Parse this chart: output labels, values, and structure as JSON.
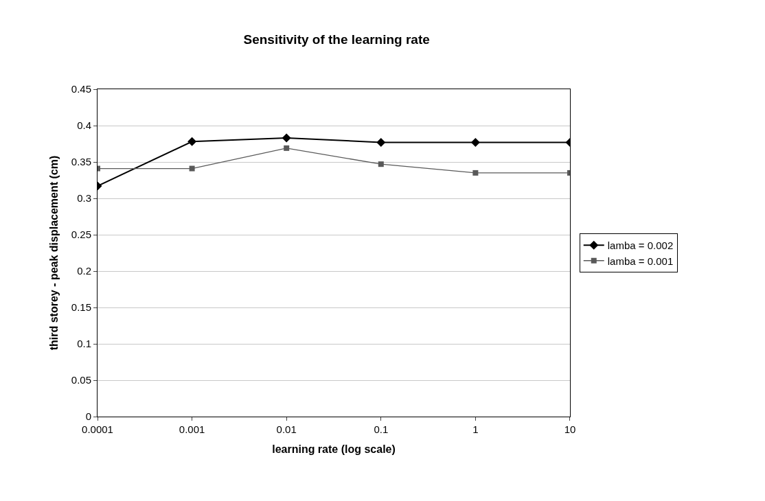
{
  "chart_data": {
    "type": "line",
    "title": "Sensitivity of the learning rate",
    "xlabel": "learning rate (log scale)",
    "ylabel": "third storey - peak displacement (cm)",
    "categories": [
      "0.0001",
      "0.001",
      "0.01",
      "0.1",
      "1",
      "10"
    ],
    "series": [
      {
        "name": "lamba = 0.002",
        "color": "#000000",
        "marker": "diamond",
        "values": [
          0.317,
          0.378,
          0.383,
          0.377,
          0.377,
          0.377
        ]
      },
      {
        "name": "lamba = 0.001",
        "color": "#595959",
        "marker": "square",
        "values": [
          0.341,
          0.341,
          0.369,
          0.347,
          0.335,
          0.335
        ]
      }
    ],
    "ylim": [
      0,
      0.45
    ],
    "yticks": [
      0,
      0.05,
      0.1,
      0.15,
      0.2,
      0.25,
      0.3,
      0.35,
      0.4,
      0.45
    ],
    "grid": "y",
    "legend": "right",
    "line_style": "solid"
  }
}
